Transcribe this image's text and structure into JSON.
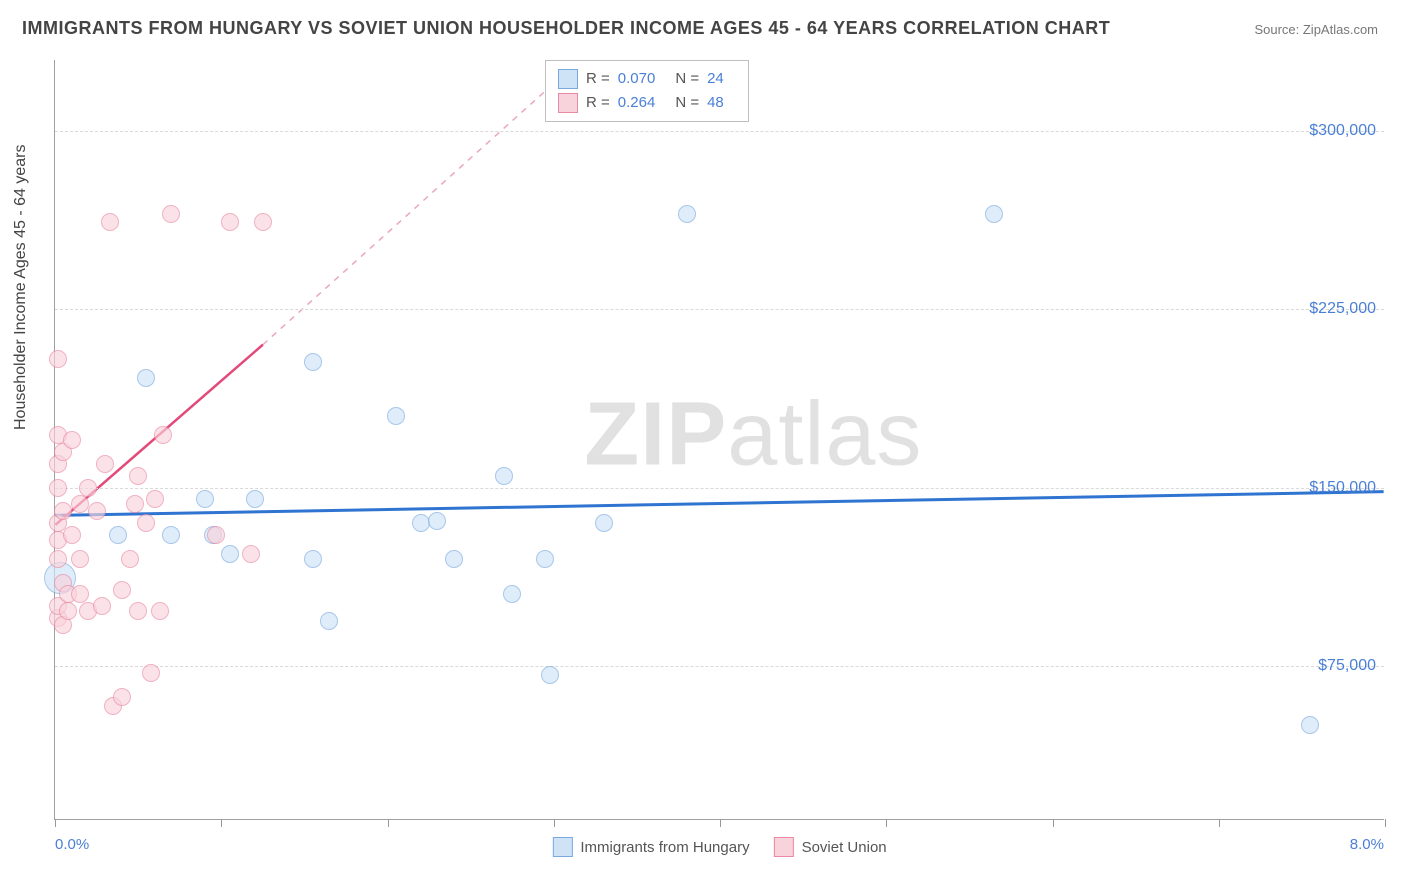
{
  "title": "IMMIGRANTS FROM HUNGARY VS SOVIET UNION HOUSEHOLDER INCOME AGES 45 - 64 YEARS CORRELATION CHART",
  "source": "Source: ZipAtlas.com",
  "y_axis_label": "Householder Income Ages 45 - 64 years",
  "watermark_bold": "ZIP",
  "watermark_thin": "atlas",
  "chart": {
    "type": "scatter",
    "xlim": [
      0,
      8
    ],
    "ylim": [
      10000,
      330000
    ],
    "x_left_label": "0.0%",
    "x_right_label": "8.0%",
    "x_ticks": [
      0,
      1,
      2,
      3,
      4,
      5,
      6,
      7,
      8
    ],
    "y_ticks": [
      75000,
      150000,
      225000,
      300000
    ],
    "y_tick_labels": [
      "$75,000",
      "$150,000",
      "$225,000",
      "$300,000"
    ],
    "grid_color": "#d9d9d9",
    "background_color": "#ffffff",
    "axis_color": "#a0a0a0",
    "tick_label_color": "#4a7fd6",
    "marker_radius": 9,
    "marker_stroke_width": 1.5,
    "series": [
      {
        "name": "Immigrants from Hungary",
        "fill": "#cfe3f7",
        "stroke": "#7aa9e0",
        "fill_opacity": 0.65,
        "trend": {
          "x1": 0,
          "y1": 138000,
          "x2": 8,
          "y2": 148000,
          "color": "#2f74d0",
          "width": 3,
          "dash": ""
        },
        "R": "0.070",
        "N": "24",
        "points": [
          [
            0.03,
            112000,
            16
          ],
          [
            0.55,
            196000
          ],
          [
            0.38,
            130000
          ],
          [
            0.7,
            130000
          ],
          [
            0.9,
            145000
          ],
          [
            0.95,
            130000
          ],
          [
            1.05,
            122000
          ],
          [
            1.2,
            145000
          ],
          [
            1.55,
            120000
          ],
          [
            1.55,
            203000
          ],
          [
            1.65,
            94000
          ],
          [
            2.05,
            180000
          ],
          [
            2.2,
            135000
          ],
          [
            2.3,
            136000
          ],
          [
            2.4,
            120000
          ],
          [
            2.7,
            155000
          ],
          [
            2.75,
            105000
          ],
          [
            2.95,
            120000
          ],
          [
            2.98,
            71000
          ],
          [
            3.3,
            135000
          ],
          [
            3.8,
            265000
          ],
          [
            5.65,
            265000
          ],
          [
            7.55,
            50000
          ]
        ]
      },
      {
        "name": "Soviet Union",
        "fill": "#f9d3dc",
        "stroke": "#e88aa3",
        "fill_opacity": 0.65,
        "trend": {
          "x1": 0,
          "y1": 134000,
          "x2": 1.25,
          "y2": 210000,
          "color": "#e34a7a",
          "width": 2.5,
          "dash": ""
        },
        "trend_ext": {
          "x1": 1.25,
          "y1": 210000,
          "x2": 3.0,
          "y2": 320000,
          "color": "#e9a7bd",
          "width": 1.5,
          "dash": "6 6"
        },
        "R": "0.264",
        "N": "48",
        "points": [
          [
            0.02,
            95000
          ],
          [
            0.02,
            100000
          ],
          [
            0.02,
            120000
          ],
          [
            0.02,
            128000
          ],
          [
            0.02,
            135000
          ],
          [
            0.02,
            150000
          ],
          [
            0.02,
            160000
          ],
          [
            0.02,
            172000
          ],
          [
            0.02,
            204000
          ],
          [
            0.05,
            92000
          ],
          [
            0.05,
            110000
          ],
          [
            0.05,
            140000
          ],
          [
            0.05,
            165000
          ],
          [
            0.08,
            98000
          ],
          [
            0.08,
            105000
          ],
          [
            0.1,
            130000
          ],
          [
            0.1,
            170000
          ],
          [
            0.15,
            105000
          ],
          [
            0.15,
            120000
          ],
          [
            0.15,
            143000
          ],
          [
            0.2,
            98000
          ],
          [
            0.2,
            150000
          ],
          [
            0.25,
            140000
          ],
          [
            0.28,
            100000
          ],
          [
            0.3,
            160000
          ],
          [
            0.33,
            262000
          ],
          [
            0.35,
            58000
          ],
          [
            0.4,
            62000
          ],
          [
            0.4,
            107000
          ],
          [
            0.45,
            120000
          ],
          [
            0.48,
            143000
          ],
          [
            0.5,
            98000
          ],
          [
            0.5,
            155000
          ],
          [
            0.55,
            135000
          ],
          [
            0.58,
            72000
          ],
          [
            0.6,
            145000
          ],
          [
            0.63,
            98000
          ],
          [
            0.65,
            172000
          ],
          [
            0.7,
            265000
          ],
          [
            0.97,
            130000
          ],
          [
            1.05,
            262000
          ],
          [
            1.25,
            262000
          ],
          [
            1.18,
            122000
          ]
        ]
      }
    ]
  },
  "legend_top": {
    "r_label": "R =",
    "n_label": "N ="
  },
  "legend_bottom": {
    "items": [
      "Immigrants from Hungary",
      "Soviet Union"
    ]
  }
}
